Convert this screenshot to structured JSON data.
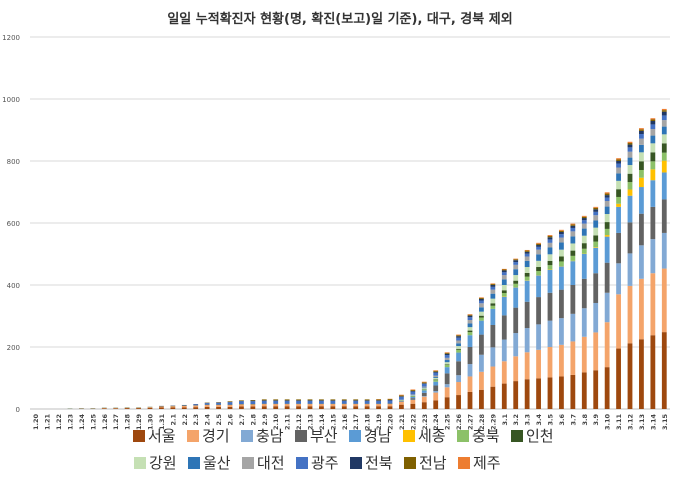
{
  "chart_data": {
    "type": "bar",
    "stacked": true,
    "title": "일일 누적확진자 현황(명, 확진(보고)일 기준), 대구, 경북 제외",
    "xlabel": "",
    "ylabel": "",
    "ylim": [
      0,
      1200
    ],
    "yticks": [
      "0",
      "200",
      "400",
      "600",
      "800",
      "1000",
      "1200"
    ],
    "grid": true,
    "legend_position": "bottom",
    "categories": [
      "1.20",
      "1.21",
      "1.22",
      "1.23",
      "1.24",
      "1.25",
      "1.26",
      "1.27",
      "1.28",
      "1.29",
      "1.30",
      "1.31",
      "2.1",
      "2.2",
      "2.3",
      "2.4",
      "2.5",
      "2.6",
      "2.7",
      "2.8",
      "2.9",
      "2.10",
      "2.11",
      "2.12",
      "2.13",
      "2.14",
      "2.15",
      "2.16",
      "2.17",
      "2.18",
      "2.19",
      "2.20",
      "2.21",
      "2.22",
      "2.23",
      "2.24",
      "2.25",
      "2.26",
      "2.27",
      "2.28",
      "2.29",
      "3.1",
      "3.2",
      "3.3",
      "3.4",
      "3.5",
      "3.6",
      "3.7",
      "3.8",
      "3.9",
      "3.10",
      "3.11",
      "3.12",
      "3.13",
      "3.14",
      "3.15"
    ],
    "series": [
      {
        "name": "서울",
        "color": "#9E480E",
        "values": [
          0,
          0,
          0,
          0,
          1,
          1,
          2,
          2,
          3,
          3,
          4,
          5,
          5,
          5,
          6,
          7,
          7,
          7,
          8,
          8,
          9,
          9,
          9,
          9,
          9,
          9,
          9,
          9,
          9,
          9,
          9,
          9,
          14,
          17,
          22,
          28,
          38,
          45,
          55,
          62,
          72,
          82,
          90,
          96,
          99,
          102,
          105,
          110,
          118,
          125,
          135,
          195,
          212,
          225,
          238,
          248
        ]
      },
      {
        "name": "경기",
        "color": "#F4A46A",
        "values": [
          0,
          0,
          0,
          0,
          0,
          0,
          1,
          1,
          1,
          1,
          2,
          3,
          4,
          5,
          5,
          6,
          6,
          6,
          7,
          7,
          7,
          7,
          7,
          7,
          7,
          7,
          7,
          7,
          7,
          7,
          7,
          7,
          9,
          12,
          18,
          25,
          32,
          42,
          50,
          58,
          65,
          72,
          80,
          87,
          92,
          98,
          102,
          108,
          115,
          122,
          145,
          175,
          185,
          195,
          200,
          205
        ]
      },
      {
        "name": "충남",
        "color": "#82A9D4",
        "values": [
          0,
          0,
          0,
          0,
          0,
          0,
          0,
          0,
          0,
          0,
          0,
          0,
          0,
          0,
          0,
          0,
          0,
          0,
          0,
          0,
          0,
          0,
          0,
          0,
          0,
          0,
          0,
          0,
          0,
          0,
          0,
          0,
          0,
          1,
          2,
          5,
          10,
          22,
          40,
          55,
          62,
          70,
          75,
          78,
          82,
          85,
          86,
          89,
          92,
          95,
          95,
          100,
          105,
          108,
          110,
          115
        ]
      },
      {
        "name": "부산",
        "color": "#636363",
        "values": [
          0,
          0,
          0,
          0,
          0,
          0,
          0,
          0,
          0,
          0,
          0,
          0,
          0,
          0,
          0,
          0,
          0,
          0,
          0,
          0,
          0,
          0,
          0,
          0,
          0,
          0,
          0,
          0,
          0,
          0,
          0,
          1,
          2,
          5,
          10,
          18,
          35,
          45,
          55,
          65,
          72,
          78,
          82,
          85,
          88,
          90,
          92,
          93,
          95,
          96,
          97,
          98,
          100,
          102,
          104,
          108
        ]
      },
      {
        "name": "경남",
        "color": "#5B9BD5",
        "values": [
          0,
          0,
          0,
          0,
          0,
          0,
          0,
          0,
          0,
          0,
          0,
          0,
          0,
          0,
          0,
          0,
          0,
          0,
          0,
          0,
          0,
          0,
          0,
          0,
          0,
          0,
          0,
          0,
          0,
          0,
          0,
          0,
          1,
          4,
          8,
          12,
          20,
          28,
          38,
          45,
          52,
          60,
          65,
          68,
          70,
          74,
          75,
          77,
          80,
          82,
          84,
          84,
          86,
          86,
          86,
          87
        ]
      },
      {
        "name": "세종",
        "color": "#FFC000",
        "values": [
          0,
          0,
          0,
          0,
          0,
          0,
          0,
          0,
          0,
          0,
          0,
          0,
          0,
          0,
          0,
          0,
          0,
          0,
          0,
          0,
          0,
          0,
          0,
          0,
          0,
          0,
          0,
          0,
          0,
          0,
          0,
          0,
          0,
          0,
          0,
          0,
          0,
          0,
          0,
          0,
          0,
          1,
          1,
          1,
          1,
          1,
          1,
          1,
          1,
          2,
          5,
          10,
          20,
          30,
          35,
          38
        ]
      },
      {
        "name": "충북",
        "color": "#8CC168",
        "values": [
          0,
          0,
          0,
          0,
          0,
          0,
          0,
          0,
          0,
          0,
          0,
          0,
          0,
          0,
          0,
          0,
          0,
          0,
          0,
          0,
          0,
          0,
          0,
          0,
          0,
          0,
          0,
          0,
          0,
          0,
          0,
          0,
          1,
          2,
          3,
          5,
          7,
          9,
          10,
          10,
          10,
          11,
          11,
          12,
          13,
          14,
          15,
          16,
          16,
          18,
          20,
          22,
          24,
          25,
          26,
          26
        ]
      },
      {
        "name": "인천",
        "color": "#375623",
        "values": [
          0,
          0,
          0,
          1,
          1,
          1,
          1,
          1,
          1,
          1,
          1,
          1,
          1,
          1,
          1,
          1,
          1,
          1,
          1,
          1,
          1,
          1,
          1,
          1,
          1,
          1,
          1,
          1,
          1,
          1,
          1,
          1,
          1,
          1,
          1,
          2,
          2,
          3,
          5,
          6,
          8,
          9,
          10,
          12,
          13,
          14,
          16,
          17,
          18,
          20,
          22,
          25,
          27,
          28,
          29,
          30
        ]
      },
      {
        "name": "강원",
        "color": "#C5E0B4",
        "values": [
          0,
          0,
          0,
          0,
          0,
          0,
          0,
          0,
          0,
          0,
          0,
          0,
          0,
          0,
          0,
          0,
          0,
          0,
          0,
          0,
          0,
          0,
          0,
          0,
          0,
          0,
          0,
          0,
          0,
          0,
          0,
          0,
          1,
          2,
          3,
          5,
          7,
          9,
          11,
          13,
          15,
          17,
          18,
          19,
          20,
          21,
          22,
          23,
          24,
          25,
          26,
          27,
          28,
          29,
          29,
          29
        ]
      },
      {
        "name": "울산",
        "color": "#2E75B6",
        "values": [
          0,
          0,
          0,
          0,
          0,
          0,
          0,
          0,
          0,
          0,
          0,
          0,
          0,
          0,
          0,
          0,
          0,
          0,
          0,
          0,
          0,
          0,
          0,
          0,
          0,
          0,
          0,
          0,
          0,
          0,
          0,
          0,
          0,
          1,
          2,
          3,
          7,
          9,
          12,
          14,
          16,
          18,
          19,
          20,
          21,
          22,
          23,
          23,
          23,
          23,
          24,
          24,
          24,
          24,
          25,
          25
        ]
      },
      {
        "name": "대전",
        "color": "#A5A5A5",
        "values": [
          0,
          0,
          0,
          0,
          0,
          0,
          0,
          0,
          0,
          0,
          0,
          0,
          0,
          0,
          0,
          0,
          0,
          0,
          0,
          0,
          0,
          0,
          0,
          0,
          0,
          0,
          0,
          0,
          0,
          0,
          0,
          0,
          1,
          2,
          3,
          5,
          7,
          9,
          11,
          13,
          13,
          14,
          14,
          14,
          15,
          15,
          16,
          16,
          16,
          17,
          18,
          19,
          19,
          20,
          21,
          21
        ]
      },
      {
        "name": "광주",
        "color": "#4472C4",
        "values": [
          0,
          0,
          0,
          0,
          0,
          0,
          0,
          0,
          0,
          0,
          0,
          0,
          0,
          1,
          3,
          5,
          6,
          8,
          9,
          9,
          9,
          9,
          9,
          9,
          9,
          9,
          9,
          9,
          9,
          9,
          9,
          9,
          9,
          9,
          9,
          9,
          9,
          9,
          9,
          9,
          9,
          9,
          9,
          9,
          9,
          11,
          11,
          11,
          11,
          11,
          11,
          13,
          14,
          15,
          15,
          15
        ]
      },
      {
        "name": "전북",
        "color": "#203864",
        "values": [
          0,
          0,
          0,
          0,
          0,
          0,
          0,
          0,
          0,
          0,
          0,
          1,
          1,
          1,
          1,
          1,
          1,
          1,
          1,
          2,
          2,
          2,
          2,
          2,
          2,
          2,
          2,
          2,
          2,
          2,
          2,
          2,
          2,
          2,
          2,
          3,
          4,
          5,
          5,
          5,
          6,
          6,
          6,
          6,
          6,
          7,
          7,
          7,
          7,
          8,
          8,
          8,
          9,
          10,
          11,
          12
        ]
      },
      {
        "name": "전남",
        "color": "#7F6000",
        "values": [
          0,
          0,
          0,
          0,
          0,
          0,
          0,
          0,
          0,
          0,
          0,
          0,
          0,
          0,
          0,
          1,
          1,
          2,
          2,
          2,
          3,
          3,
          3,
          3,
          3,
          3,
          3,
          3,
          3,
          3,
          3,
          3,
          3,
          3,
          3,
          3,
          3,
          3,
          3,
          3,
          3,
          3,
          3,
          4,
          4,
          4,
          4,
          4,
          4,
          5,
          5,
          5,
          5,
          5,
          5,
          5
        ]
      },
      {
        "name": "제주",
        "color": "#ED7D31",
        "values": [
          0,
          0,
          0,
          0,
          0,
          0,
          0,
          0,
          0,
          0,
          0,
          0,
          0,
          0,
          0,
          0,
          0,
          0,
          0,
          0,
          0,
          0,
          0,
          0,
          0,
          0,
          0,
          0,
          0,
          0,
          1,
          1,
          2,
          2,
          2,
          2,
          2,
          2,
          2,
          2,
          2,
          2,
          2,
          2,
          3,
          3,
          3,
          3,
          3,
          3,
          4,
          4,
          4,
          4,
          4,
          4
        ]
      }
    ]
  }
}
